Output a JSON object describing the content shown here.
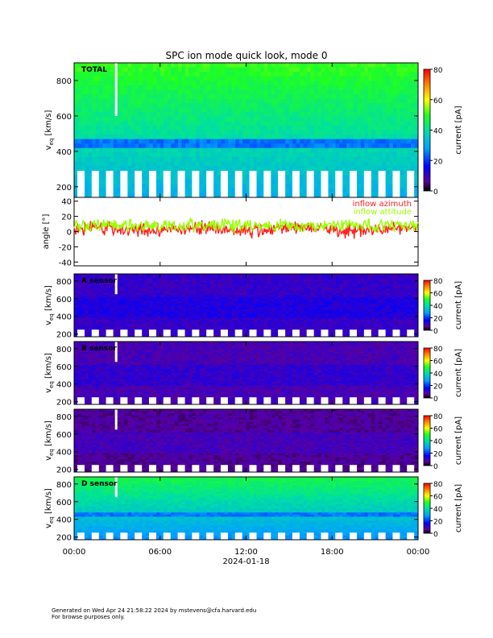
{
  "title": "SPC ion mode quick look, mode 0",
  "footer": {
    "line1": "Generated on Wed Apr 24 21:58:22 2024 by mstevens@cfa.harvard.edu",
    "line2": "For browse purposes only."
  },
  "chart_data": [
    {
      "type": "heatmap",
      "panel": "total",
      "label": "TOTAL",
      "ylabel_main": "v",
      "ylabel_sub": "eq",
      "ylabel_unit": " [km/s]",
      "ylim": [
        140,
        900
      ],
      "yticks": [
        200,
        400,
        600,
        800
      ],
      "colorbar": {
        "label": "current [pA]",
        "range": [
          0,
          80
        ],
        "ticks": [
          0,
          20,
          40,
          60,
          80
        ]
      },
      "colormap": "rainbow",
      "background_level": 38,
      "core_speed_kms": 320
    },
    {
      "type": "line",
      "panel": "angles",
      "ylabel": "angle [°]",
      "ylim": [
        -45,
        45
      ],
      "yticks": [
        -40,
        -20,
        0,
        20,
        40
      ],
      "series": [
        {
          "name": "inflow azimuth",
          "color": "#ff2020"
        },
        {
          "name": "inflow attitude",
          "color": "#99ff00"
        }
      ]
    },
    {
      "type": "heatmap",
      "panel": "A",
      "label": "A sensor",
      "ylabel_main": "v",
      "ylabel_sub": "eq",
      "ylabel_unit": " [km/s]",
      "ylim": [
        170,
        880
      ],
      "yticks": [
        200,
        400,
        600,
        800
      ],
      "colorbar": {
        "label": "current [pA]",
        "range": [
          0,
          80
        ],
        "ticks": [
          0,
          20,
          40,
          60,
          80
        ]
      },
      "colormap": "rainbow",
      "background_level": 8
    },
    {
      "type": "heatmap",
      "panel": "B",
      "label": "B sensor",
      "ylabel_main": "v",
      "ylabel_sub": "eq",
      "ylabel_unit": " [km/s]",
      "ylim": [
        170,
        880
      ],
      "yticks": [
        200,
        400,
        600,
        800
      ],
      "colorbar": {
        "label": "current [pA]",
        "range": [
          0,
          80
        ],
        "ticks": [
          0,
          20,
          40,
          60,
          80
        ]
      },
      "colormap": "rainbow",
      "background_level": 6
    },
    {
      "type": "heatmap",
      "panel": "C",
      "label": "",
      "ylabel_main": "v",
      "ylabel_sub": "eq",
      "ylabel_unit": " [km/s]",
      "ylim": [
        170,
        880
      ],
      "yticks": [
        200,
        400,
        600,
        800
      ],
      "colorbar": {
        "label": "current [pA]",
        "range": [
          0,
          80
        ],
        "ticks": [
          0,
          20,
          40,
          60,
          80
        ]
      },
      "colormap": "rainbow",
      "background_level": 4
    },
    {
      "type": "heatmap",
      "panel": "D",
      "label": "D sensor",
      "ylabel_main": "v",
      "ylabel_sub": "eq",
      "ylabel_unit": " [km/s]",
      "ylim": [
        170,
        880
      ],
      "yticks": [
        200,
        400,
        600,
        800
      ],
      "colorbar": {
        "label": "current [pA]",
        "range": [
          0,
          80
        ],
        "ticks": [
          0,
          20,
          40,
          60,
          80
        ]
      },
      "colormap": "rainbow",
      "background_level": 34
    }
  ],
  "x_axis": {
    "range_hours": [
      0,
      24
    ],
    "ticks": [
      {
        "hour": 0,
        "label": "00:00"
      },
      {
        "hour": 6,
        "label": "06:00"
      },
      {
        "hour": 12,
        "label": "12:00"
      },
      {
        "hour": 18,
        "label": "18:00"
      },
      {
        "hour": 24,
        "label": "00:00"
      }
    ],
    "date": "2024-01-18",
    "scan_cycles": 24
  }
}
